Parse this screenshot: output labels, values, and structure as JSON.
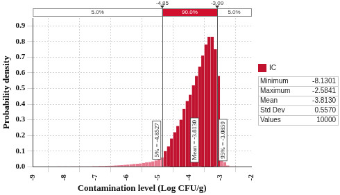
{
  "chart_data": {
    "type": "histogram",
    "xlabel": "Contamination level (Log CFU/g)",
    "ylabel": "Probability density",
    "bins": [
      -8.2,
      -8.1,
      -8.0,
      -7.9,
      -7.8,
      -7.7,
      -7.6,
      -7.5,
      -7.4,
      -7.3,
      -7.2,
      -7.1,
      -7.0,
      -6.9,
      -6.8,
      -6.7,
      -6.6,
      -6.5,
      -6.4,
      -6.3,
      -6.2,
      -6.1,
      -6.0,
      -5.9,
      -5.8,
      -5.7,
      -5.6,
      -5.5,
      -5.4,
      -5.3,
      -5.2,
      -5.1,
      -5.0,
      -4.9,
      -4.8,
      -4.7,
      -4.6,
      -4.5,
      -4.4,
      -4.3,
      -4.2,
      -4.1,
      -4.0,
      -3.9,
      -3.8,
      -3.7,
      -3.6,
      -3.5,
      -3.4,
      -3.3,
      -3.2,
      -3.1,
      -3.0,
      -2.9,
      -2.8,
      -2.7,
      -2.6,
      -2.5
    ],
    "series": [
      {
        "name": "IC",
        "color": "#c0122f",
        "values": [
          0.001,
          0,
          0.001,
          0,
          0.001,
          0.001,
          0.001,
          0.002,
          0.001,
          0.002,
          0.002,
          0.003,
          0.003,
          0.004,
          0.004,
          0.005,
          0.006,
          0.007,
          0.008,
          0.009,
          0.01,
          0.012,
          0.013,
          0.015,
          0.017,
          0.019,
          0.021,
          0.024,
          0.027,
          0.03,
          0.034,
          0.04,
          0.047,
          0.06,
          0.1,
          0.13,
          0.18,
          0.22,
          0.26,
          0.3,
          0.37,
          0.42,
          0.46,
          0.52,
          0.58,
          0.64,
          0.71,
          0.78,
          0.83,
          0.83,
          0.75,
          0.58,
          0.14,
          0.03,
          0.008,
          0.002,
          0.001
        ],
        "colors": [
          "#e8788e",
          "#e8788e",
          "#e8788e",
          "#e8788e",
          "#e8788e",
          "#e8788e",
          "#e8788e",
          "#e8788e",
          "#e8788e",
          "#e8788e",
          "#e8788e",
          "#e8788e",
          "#e8788e",
          "#e8788e",
          "#e8788e",
          "#e8788e",
          "#e8788e",
          "#e8788e",
          "#e8788e",
          "#e8788e",
          "#e8788e",
          "#e8788e",
          "#e8788e",
          "#e8788e",
          "#e8788e",
          "#e8788e",
          "#e8788e",
          "#e8788e",
          "#e8788e",
          "#e8788e",
          "#e8788e",
          "#e8788e",
          "#e8788e",
          "#e8788e",
          "#c0122f",
          "#c0122f",
          "#c0122f",
          "#c0122f",
          "#c0122f",
          "#c0122f",
          "#c0122f",
          "#c0122f",
          "#c0122f",
          "#c0122f",
          "#c0122f",
          "#c0122f",
          "#c0122f",
          "#c0122f",
          "#c0122f",
          "#c0122f",
          "#c0122f",
          "#c0122f",
          "#e8788e",
          "#e8788e",
          "#e8788e",
          "#e8788e",
          "#e8788e"
        ]
      }
    ],
    "xlim": [
      -9,
      -2
    ],
    "xticks": [
      -9,
      -8,
      -7,
      -6,
      -5,
      -4,
      -3,
      -2
    ],
    "ylim": [
      0,
      0.95
    ],
    "yticks": [
      {
        "value": 0,
        "label": "0.0"
      },
      0.1,
      0.2,
      0.3,
      0.4,
      0.5,
      0.6,
      0.7,
      0.8,
      0.9
    ],
    "grid": true,
    "legend": "right",
    "delimiters": {
      "markers": [
        -4.85,
        -3.09
      ],
      "bands": [
        {
          "value": 5,
          "label": "5.0%"
        },
        {
          "value": 90,
          "label": "90.0%"
        },
        {
          "value": 5,
          "label": "5.0%"
        }
      ]
    },
    "annotations": [
      {
        "value": -4.8527,
        "text": "5% = -4.8527"
      },
      {
        "value": -3.813,
        "text": "Mean = -3.8130"
      },
      {
        "value": -3.0859,
        "text": "95% = -3.0859"
      }
    ],
    "statistics": [
      {
        "name": "Minimum",
        "value": -8.1301
      },
      {
        "name": "Maximum",
        "value": -2.5841
      },
      {
        "name": "Mean",
        "value": -3.813,
        "label": "-3.8130"
      },
      {
        "name": "Std Dev",
        "value": 0.557,
        "label": "0.5570"
      },
      {
        "name": "Values",
        "value": 10000
      }
    ]
  }
}
